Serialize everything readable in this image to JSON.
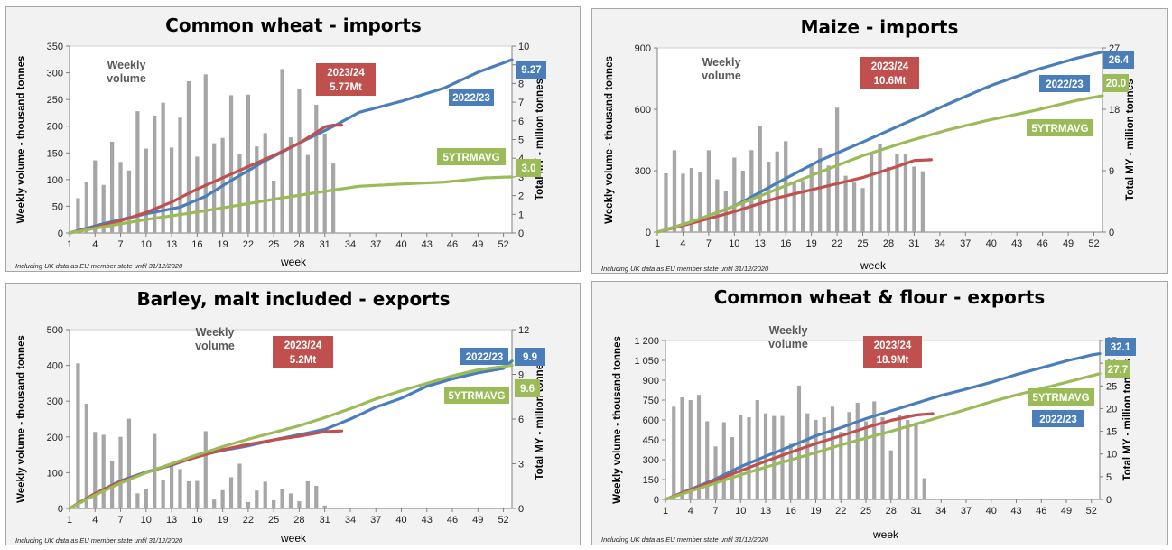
{
  "footnote": "Including UK data as EU member state until 31/12/2020",
  "weekly_label": [
    "Weekly",
    "volume"
  ],
  "xlabel": "week",
  "ylabel_left": "Weekly volume - thousand tonnes",
  "ylabel_right": "Total MY - million tonnes",
  "colors": {
    "bars": "#a6a6a6",
    "s2022": "#4a7ebb",
    "s2023": "#c0504d",
    "s5y": "#9bbb59"
  },
  "chart_data": [
    {
      "title": "Common wheat - imports",
      "type": "bar+line",
      "xticks": [
        1,
        4,
        7,
        10,
        13,
        16,
        19,
        22,
        25,
        28,
        31,
        34,
        37,
        40,
        43,
        46,
        49,
        52
      ],
      "ylim_left": [
        0,
        350
      ],
      "yticks_left": [
        0,
        50,
        100,
        150,
        200,
        250,
        300,
        350
      ],
      "ylim_right": [
        0,
        10
      ],
      "yticks_right": [
        0,
        1,
        2,
        3,
        4,
        5,
        6,
        7,
        8,
        9,
        10
      ],
      "weekly_volume": [
        0,
        65,
        96,
        136,
        90,
        171,
        133,
        117,
        228,
        158,
        220,
        244,
        160,
        216,
        284,
        143,
        297,
        168,
        178,
        258,
        148,
        259,
        162,
        187,
        98,
        307,
        179,
        270,
        146,
        240,
        186,
        130
      ],
      "current_label": [
        "2023/24",
        "5.77Mt"
      ],
      "series": [
        {
          "name": "2022/23",
          "key": "s2022",
          "end_label": "9.27",
          "anchors": [
            [
              1,
              0
            ],
            [
              5,
              0.5
            ],
            [
              10,
              1.03
            ],
            [
              14,
              1.38
            ],
            [
              17,
              1.96
            ],
            [
              20,
              2.81
            ],
            [
              24,
              3.86
            ],
            [
              28,
              4.81
            ],
            [
              32,
              5.7
            ],
            [
              35,
              6.45
            ],
            [
              40,
              7.05
            ],
            [
              45,
              7.75
            ],
            [
              49,
              8.6
            ],
            [
              53,
              9.27
            ]
          ]
        },
        {
          "name": "2023/24",
          "key": "s2023",
          "anchors": [
            [
              1,
              0
            ],
            [
              4,
              0.3
            ],
            [
              7,
              0.65
            ],
            [
              10,
              1.1
            ],
            [
              13,
              1.65
            ],
            [
              16,
              2.35
            ],
            [
              19,
              2.95
            ],
            [
              22,
              3.55
            ],
            [
              25,
              4.15
            ],
            [
              28,
              4.8
            ],
            [
              30,
              5.38
            ],
            [
              31,
              5.68
            ],
            [
              32,
              5.77
            ],
            [
              33,
              5.77
            ]
          ]
        },
        {
          "name": "5YTRMAVG",
          "key": "s5y",
          "end_label": "3.0",
          "anchors": [
            [
              1,
              0
            ],
            [
              5,
              0.33
            ],
            [
              10,
              0.72
            ],
            [
              15,
              1.05
            ],
            [
              20,
              1.42
            ],
            [
              25,
              1.8
            ],
            [
              30,
              2.16
            ],
            [
              35,
              2.5
            ],
            [
              40,
              2.62
            ],
            [
              45,
              2.72
            ],
            [
              50,
              2.95
            ],
            [
              53,
              3.0
            ]
          ]
        }
      ]
    },
    {
      "title": "Maize - imports",
      "type": "bar+line",
      "xticks": [
        1,
        4,
        7,
        10,
        13,
        16,
        19,
        22,
        25,
        28,
        31,
        34,
        37,
        40,
        43,
        46,
        49,
        52
      ],
      "ylim_left": [
        0,
        900
      ],
      "yticks_left": [
        0,
        300,
        600,
        900
      ],
      "ylim_right": [
        0,
        27
      ],
      "yticks_right": [
        0,
        9,
        18,
        27
      ],
      "weekly_volume": [
        0,
        287,
        400,
        285,
        313,
        291,
        400,
        258,
        200,
        364,
        300,
        400,
        518,
        344,
        394,
        444,
        240,
        250,
        332,
        410,
        325,
        608,
        275,
        242,
        215,
        383,
        431,
        318,
        382,
        380,
        320,
        297
      ],
      "current_label": [
        "2023/24",
        "10.6Mt"
      ],
      "series": [
        {
          "name": "2022/23",
          "key": "s2022",
          "end_label": "26.4",
          "anchors": [
            [
              1,
              0
            ],
            [
              5,
              1.5
            ],
            [
              10,
              3.8
            ],
            [
              15,
              7.2
            ],
            [
              20,
              10.5
            ],
            [
              25,
              13.2
            ],
            [
              30,
              16.0
            ],
            [
              35,
              18.8
            ],
            [
              40,
              21.5
            ],
            [
              45,
              23.7
            ],
            [
              50,
              25.5
            ],
            [
              53,
              26.4
            ]
          ]
        },
        {
          "name": "2023/24",
          "key": "s2023",
          "anchors": [
            [
              1,
              0
            ],
            [
              5,
              1.3
            ],
            [
              10,
              3.0
            ],
            [
              15,
              5.0
            ],
            [
              20,
              6.5
            ],
            [
              25,
              8.0
            ],
            [
              29,
              9.6
            ],
            [
              31,
              10.5
            ],
            [
              33,
              10.6
            ]
          ]
        },
        {
          "name": "5YTRMAVG",
          "key": "s5y",
          "end_label": "20.0",
          "anchors": [
            [
              1,
              0
            ],
            [
              5,
              1.5
            ],
            [
              10,
              3.8
            ],
            [
              15,
              6.3
            ],
            [
              20,
              8.8
            ],
            [
              25,
              11.2
            ],
            [
              30,
              13.2
            ],
            [
              35,
              15.0
            ],
            [
              40,
              16.5
            ],
            [
              45,
              17.8
            ],
            [
              50,
              19.3
            ],
            [
              53,
              20.0
            ]
          ]
        }
      ]
    },
    {
      "title": "Barley, malt included - exports",
      "type": "bar+line",
      "xticks": [
        1,
        4,
        7,
        10,
        13,
        16,
        19,
        22,
        25,
        28,
        31,
        34,
        37,
        40,
        43,
        46,
        49,
        52
      ],
      "ylim_left": [
        0,
        500
      ],
      "yticks_left": [
        0,
        100,
        200,
        300,
        400,
        500
      ],
      "ylim_right": [
        0,
        12
      ],
      "yticks_right": [
        0,
        3,
        6,
        9,
        12
      ],
      "weekly_volume": [
        0,
        406,
        293,
        214,
        206,
        133,
        200,
        251,
        42,
        55,
        208,
        80,
        123,
        110,
        76,
        77,
        216,
        25,
        51,
        87,
        125,
        18,
        50,
        75,
        23,
        53,
        42,
        20,
        76,
        63,
        8
      ],
      "current_label": [
        "2023/24",
        "5.2Mt"
      ],
      "series": [
        {
          "name": "2022/23",
          "key": "s2022",
          "end_label": "9.9",
          "anchors": [
            [
              1,
              0
            ],
            [
              4,
              1.0
            ],
            [
              7,
              1.85
            ],
            [
              10,
              2.45
            ],
            [
              13,
              2.9
            ],
            [
              16,
              3.5
            ],
            [
              19,
              3.9
            ],
            [
              22,
              4.2
            ],
            [
              25,
              4.6
            ],
            [
              28,
              4.95
            ],
            [
              31,
              5.3
            ],
            [
              34,
              6.0
            ],
            [
              37,
              6.8
            ],
            [
              40,
              7.4
            ],
            [
              43,
              8.2
            ],
            [
              46,
              8.7
            ],
            [
              49,
              9.1
            ],
            [
              52,
              9.4
            ],
            [
              53,
              9.9
            ]
          ]
        },
        {
          "name": "2023/24",
          "key": "s2023",
          "anchors": [
            [
              1,
              0
            ],
            [
              4,
              1.0
            ],
            [
              7,
              1.8
            ],
            [
              10,
              2.4
            ],
            [
              13,
              2.95
            ],
            [
              16,
              3.45
            ],
            [
              19,
              3.95
            ],
            [
              22,
              4.3
            ],
            [
              25,
              4.6
            ],
            [
              28,
              4.85
            ],
            [
              31,
              5.15
            ],
            [
              33,
              5.2
            ]
          ]
        },
        {
          "name": "5YTRMAVG",
          "key": "s5y",
          "end_label": "9.6",
          "anchors": [
            [
              1,
              0
            ],
            [
              4,
              0.9
            ],
            [
              7,
              1.7
            ],
            [
              10,
              2.4
            ],
            [
              13,
              3.0
            ],
            [
              16,
              3.6
            ],
            [
              19,
              4.15
            ],
            [
              22,
              4.65
            ],
            [
              25,
              5.1
            ],
            [
              28,
              5.55
            ],
            [
              31,
              6.1
            ],
            [
              34,
              6.7
            ],
            [
              37,
              7.35
            ],
            [
              40,
              7.9
            ],
            [
              43,
              8.4
            ],
            [
              46,
              8.9
            ],
            [
              49,
              9.3
            ],
            [
              53,
              9.6
            ]
          ]
        }
      ]
    },
    {
      "title": "Common wheat & flour - exports",
      "type": "bar+line",
      "xticks": [
        1,
        4,
        7,
        10,
        13,
        16,
        19,
        22,
        25,
        28,
        31,
        34,
        37,
        40,
        43,
        46,
        49,
        52
      ],
      "ylim_left": [
        0,
        1200
      ],
      "yticks_left": [
        "0",
        "150",
        "300",
        "450",
        "600",
        "750",
        "900",
        "1 050",
        "1 200"
      ],
      "ylim_right": [
        0,
        35
      ],
      "yticks_right": [
        0,
        5,
        10,
        15,
        20,
        25,
        30,
        35
      ],
      "weekly_volume": [
        0,
        700,
        770,
        750,
        790,
        590,
        400,
        583,
        470,
        635,
        620,
        750,
        650,
        630,
        630,
        420,
        860,
        650,
        600,
        620,
        700,
        510,
        660,
        730,
        590,
        740,
        620,
        370,
        640,
        600,
        580,
        160
      ],
      "current_label": [
        "2023/24",
        "18.9Mt"
      ],
      "series": [
        {
          "name": "2022/23",
          "key": "s2022",
          "end_label": "32.1",
          "anchors": [
            [
              1,
              0
            ],
            [
              4,
              2.2
            ],
            [
              7,
              4.5
            ],
            [
              10,
              7.2
            ],
            [
              13,
              9.5
            ],
            [
              16,
              11.7
            ],
            [
              19,
              14.0
            ],
            [
              22,
              15.8
            ],
            [
              25,
              17.8
            ],
            [
              28,
              19.5
            ],
            [
              31,
              21.2
            ],
            [
              34,
              22.9
            ],
            [
              37,
              24.3
            ],
            [
              40,
              25.8
            ],
            [
              43,
              27.5
            ],
            [
              46,
              29.0
            ],
            [
              49,
              30.5
            ],
            [
              52,
              31.8
            ],
            [
              53,
              32.1
            ]
          ]
        },
        {
          "name": "2023/24",
          "key": "s2023",
          "anchors": [
            [
              1,
              0
            ],
            [
              4,
              2.1
            ],
            [
              7,
              4.2
            ],
            [
              10,
              6.3
            ],
            [
              13,
              8.4
            ],
            [
              16,
              10.4
            ],
            [
              19,
              12.3
            ],
            [
              22,
              14.0
            ],
            [
              25,
              15.8
            ],
            [
              28,
              17.4
            ],
            [
              31,
              18.6
            ],
            [
              33,
              18.9
            ]
          ]
        },
        {
          "name": "5YTRMAVG",
          "key": "s5y",
          "end_label": "27.7",
          "anchors": [
            [
              1,
              0
            ],
            [
              4,
              1.8
            ],
            [
              7,
              3.6
            ],
            [
              10,
              5.4
            ],
            [
              13,
              7.1
            ],
            [
              16,
              8.7
            ],
            [
              19,
              10.3
            ],
            [
              22,
              12.0
            ],
            [
              25,
              13.5
            ],
            [
              28,
              15.0
            ],
            [
              31,
              16.6
            ],
            [
              34,
              18.2
            ],
            [
              37,
              19.8
            ],
            [
              40,
              21.5
            ],
            [
              43,
              23.0
            ],
            [
              46,
              24.4
            ],
            [
              49,
              25.8
            ],
            [
              53,
              27.7
            ]
          ]
        }
      ]
    }
  ]
}
